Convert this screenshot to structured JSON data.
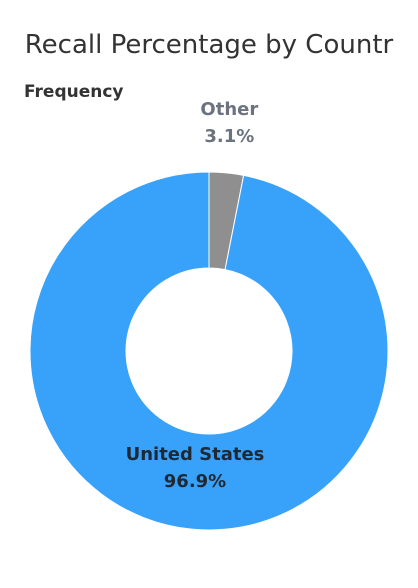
{
  "chart_data": {
    "type": "pie",
    "title": "Recall Percentage by Countr",
    "measure_label": "Frequency",
    "donut": true,
    "slices": [
      {
        "label": "Other",
        "value": 3.1,
        "value_text": "3.1%",
        "color": "#8f8f8f",
        "label_color": "#6b7280"
      },
      {
        "label": "United States",
        "value": 96.9,
        "value_text": "96.9%",
        "color": "#38a1fa",
        "label_color": "#1f2933"
      }
    ]
  }
}
